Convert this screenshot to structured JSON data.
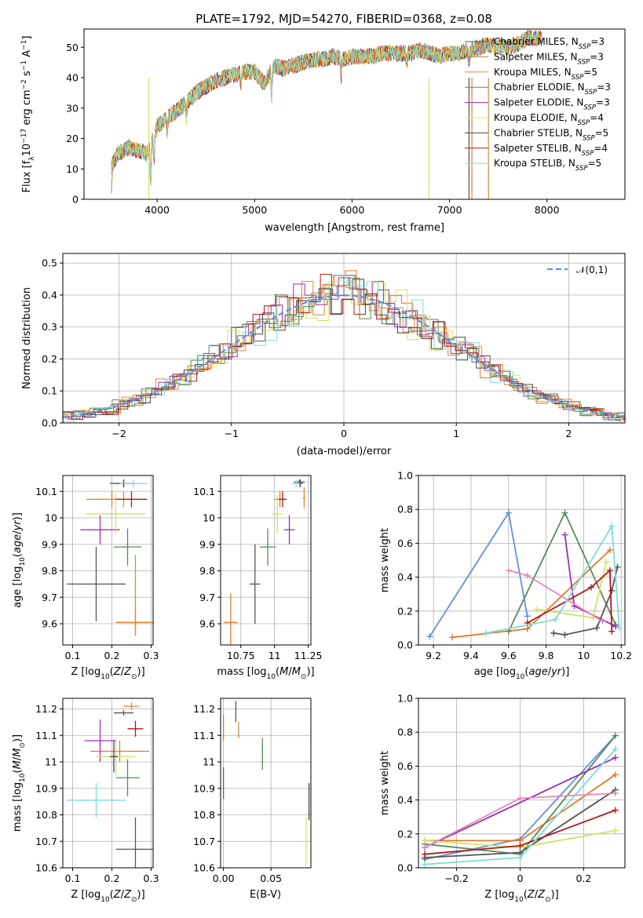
{
  "figure_title": "PLATE=1792, MJD=54270, FIBERID=0368, z=0.08",
  "model_colors": [
    "#555555",
    "#e07b2a",
    "#d98b3a",
    "#5a8a5a",
    "#9b30b0",
    "#d8e060",
    "#444444",
    "#b01818",
    "#80dada"
  ],
  "legend_entries": [
    "Chabrier MILES, N_SSP=3",
    "Salpeter MILES, N_SSP=3",
    "Kroupa MILES, N_SSP=5",
    "Chabrier ELODIE, N_SSP=3",
    "Salpeter ELODIE, N_SSP=3",
    "Kroupa ELODIE, N_SSP=4",
    "Chabrier STELIB, N_SSP=5",
    "Salpeter STELIB, N_SSP=4",
    "Kroupa STELIB, N_SSP=5"
  ],
  "chart_data": [
    {
      "id": "spectrum",
      "type": "line",
      "title": "PLATE=1792, MJD=54270, FIBERID=0368, z=0.08",
      "xlabel": "wavelength [Angstrom, rest frame]",
      "ylabel": "Flux [f_λ 10^-17 erg cm^-2 s^-1 A^-1]",
      "xlim": [
        3250,
        8800
      ],
      "ylim": [
        0,
        56
      ],
      "xticks": [
        4000,
        5000,
        6000,
        7000,
        8000
      ],
      "yticks": [
        0,
        10,
        20,
        30,
        40,
        50
      ],
      "x": [
        3530,
        3600,
        3700,
        3800,
        3900,
        4000,
        4100,
        4200,
        4300,
        4400,
        4500,
        4600,
        4700,
        4800,
        4900,
        5000,
        5100,
        5200,
        5300,
        5400,
        5500,
        5600,
        5700,
        5800,
        5900,
        6000,
        6100,
        6200,
        6300,
        6400,
        6500,
        6600,
        6700,
        6800,
        6900,
        7000,
        7100,
        7200,
        7300,
        7400,
        7500,
        7600,
        7700,
        7800,
        7900
      ],
      "flux": [
        11,
        15,
        17,
        16,
        15,
        24,
        27,
        29,
        32,
        35,
        37,
        39,
        40,
        41,
        42,
        42,
        38,
        44,
        43,
        44,
        45,
        46,
        46,
        47,
        46,
        47,
        47,
        47,
        48,
        48,
        48,
        48,
        49,
        48,
        47,
        48,
        48,
        49,
        50,
        51,
        50,
        50,
        51,
        53,
        53
      ],
      "grid": false,
      "legend": "right"
    },
    {
      "id": "residuals",
      "type": "histogram",
      "xlabel": "(data-model)/error",
      "ylabel": "Normed distribution",
      "xlim": [
        -2.5,
        2.5
      ],
      "ylim": [
        0,
        0.53
      ],
      "xticks": [
        -2,
        -1,
        0,
        1,
        2
      ],
      "yticks": [
        0.0,
        0.1,
        0.2,
        0.3,
        0.4,
        0.5
      ],
      "reference_curve": "𝒩(0,1)",
      "legend": "top-right",
      "grid": true
    },
    {
      "id": "age-vs-Z",
      "type": "scatter",
      "xlabel": "Z [log10(Z/Z⊙)]",
      "ylabel": "age [log10(age/yr)]",
      "xlim": [
        0.075,
        0.305
      ],
      "ylim": [
        9.52,
        10.16
      ],
      "xticks": [
        0.1,
        0.2,
        0.3
      ],
      "yticks": [
        9.6,
        9.7,
        9.8,
        9.9,
        10.0,
        10.1
      ],
      "grid": true,
      "points": [
        {
          "x": 0.23,
          "y": 10.13,
          "xerr": 0.035,
          "yerr": 0.01
        },
        {
          "x": 0.2,
          "y": 10.07,
          "xerr": 0.065,
          "yerr": 0.03
        },
        {
          "x": 0.23,
          "y": 10.07,
          "xerr": 0.06,
          "yerr": 0.03
        },
        {
          "x": 0.24,
          "y": 9.89,
          "xerr": 0.035,
          "yerr": 0.07
        },
        {
          "x": 0.17,
          "y": 9.955,
          "xerr": 0.05,
          "yerr": 0.055
        },
        {
          "x": 0.21,
          "y": 10.015,
          "xerr": 0.075,
          "yerr": 0.075
        },
        {
          "x": 0.23,
          "y": 10.13,
          "xerr": 0.02,
          "yerr": 0.015
        },
        {
          "x": 0.25,
          "y": 10.07,
          "xerr": 0.04,
          "yerr": 0.03
        },
        {
          "x": 0.255,
          "y": 10.13,
          "xerr": 0.035,
          "yerr": 0.015
        },
        {
          "x": 0.16,
          "y": 9.75,
          "xerr": 0.075,
          "yerr": 0.14
        },
        {
          "x": 0.26,
          "y": 9.605,
          "xerr": 0.05,
          "yerr": 0.05
        },
        {
          "x": 0.26,
          "y": 9.71,
          "xerr": 0.0,
          "yerr": 0.15
        }
      ]
    },
    {
      "id": "age-vs-mass",
      "type": "scatter",
      "xlabel": "mass [log10(M/M⊙)]",
      "ylabel": "",
      "xlim": [
        10.6,
        11.27
      ],
      "ylim": [
        9.52,
        10.16
      ],
      "xticks": [
        10.75,
        11.0,
        11.25
      ],
      "yticks": [
        9.6,
        9.7,
        9.8,
        9.9,
        10.0,
        10.1
      ],
      "grid": true,
      "points": [
        {
          "x": 11.185,
          "y": 10.135,
          "xerr": 0.04,
          "yerr": 0.01
        },
        {
          "x": 11.04,
          "y": 10.07,
          "xerr": 0.04,
          "yerr": 0.03
        },
        {
          "x": 11.22,
          "y": 10.075,
          "xerr": 0.01,
          "yerr": 0.04
        },
        {
          "x": 10.95,
          "y": 9.89,
          "xerr": 0.06,
          "yerr": 0.07
        },
        {
          "x": 11.11,
          "y": 9.955,
          "xerr": 0.04,
          "yerr": 0.055
        },
        {
          "x": 11.02,
          "y": 10.015,
          "xerr": 0.04,
          "yerr": 0.075
        },
        {
          "x": 11.19,
          "y": 10.13,
          "xerr": 0.02,
          "yerr": 0.015
        },
        {
          "x": 11.06,
          "y": 10.07,
          "xerr": 0.03,
          "yerr": 0.03
        },
        {
          "x": 11.16,
          "y": 10.13,
          "xerr": 0.03,
          "yerr": 0.015
        },
        {
          "x": 10.855,
          "y": 9.75,
          "xerr": 0.04,
          "yerr": 0.15
        },
        {
          "x": 10.675,
          "y": 9.605,
          "xerr": 0.05,
          "yerr": 0.11
        }
      ]
    },
    {
      "id": "massweight-vs-age",
      "type": "line",
      "xlabel": "age [log10(age/yr)]",
      "ylabel": "mass weight",
      "xlim": [
        9.12,
        10.22
      ],
      "ylim": [
        0,
        1.0
      ],
      "xticks": [
        9.2,
        9.4,
        9.6,
        9.8,
        10.0,
        10.2
      ],
      "yticks": [
        0.0,
        0.2,
        0.4,
        0.6,
        0.8,
        1.0
      ],
      "grid": true,
      "series": [
        {
          "x": [
            9.18,
            9.6,
            9.7
          ],
          "y": [
            0.05,
            0.78,
            0.17
          ]
        },
        {
          "x": [
            9.3,
            9.7,
            10.14
          ],
          "y": [
            0.045,
            0.095,
            0.56
          ]
        },
        {
          "x": [
            9.6,
            9.9,
            10.17
          ],
          "y": [
            0.08,
            0.78,
            0.12
          ]
        },
        {
          "x": [
            9.9,
            9.95,
            10.17
          ],
          "y": [
            0.65,
            0.23,
            0.11
          ]
        },
        {
          "x": [
            9.75,
            10.05,
            10.12
          ],
          "y": [
            0.21,
            0.16,
            0.49
          ]
        },
        {
          "x": [
            9.84,
            9.9,
            10.07,
            10.15,
            10.18
          ],
          "y": [
            0.07,
            0.06,
            0.1,
            0.32,
            0.46
          ]
        },
        {
          "x": [
            9.7,
            10.04,
            10.14,
            10.15
          ],
          "y": [
            0.13,
            0.34,
            0.44,
            0.08
          ]
        },
        {
          "x": [
            9.48,
            9.85,
            10.15,
            10.19
          ],
          "y": [
            0.07,
            0.15,
            0.7,
            0.1
          ]
        },
        {
          "x": [
            9.6,
            9.7,
            10.1
          ],
          "y": [
            0.44,
            0.41,
            0.14
          ]
        }
      ]
    },
    {
      "id": "mass-vs-Z",
      "type": "scatter",
      "xlabel": "Z [log10(Z/Z⊙)]",
      "ylabel": "mass [log10(M/M⊙)]",
      "xlim": [
        0.075,
        0.305
      ],
      "ylim": [
        10.6,
        11.24
      ],
      "xticks": [
        0.1,
        0.2,
        0.3
      ],
      "yticks": [
        10.6,
        10.7,
        10.8,
        10.9,
        11.0,
        11.1,
        11.2
      ],
      "grid": true,
      "points": [
        {
          "x": 0.23,
          "y": 11.185,
          "xerr": 0.025,
          "yerr": 0.01
        },
        {
          "x": 0.22,
          "y": 11.04,
          "xerr": 0.075,
          "yerr": 0.04
        },
        {
          "x": 0.25,
          "y": 11.21,
          "xerr": 0.02,
          "yerr": 0.015
        },
        {
          "x": 0.24,
          "y": 10.94,
          "xerr": 0.03,
          "yerr": 0.07
        },
        {
          "x": 0.17,
          "y": 11.08,
          "xerr": 0.04,
          "yerr": 0.08
        },
        {
          "x": 0.21,
          "y": 11.02,
          "xerr": 0.05,
          "yerr": 0.07
        },
        {
          "x": 0.205,
          "y": 11.02,
          "xerr": 0.01,
          "yerr": 0.06
        },
        {
          "x": 0.26,
          "y": 11.125,
          "xerr": 0.02,
          "yerr": 0.03
        },
        {
          "x": 0.16,
          "y": 10.855,
          "xerr": 0.075,
          "yerr": 0.065
        },
        {
          "x": 0.26,
          "y": 10.67,
          "xerr": 0.05,
          "yerr": 0.12
        }
      ]
    },
    {
      "id": "mass-vs-EBV",
      "type": "scatter",
      "xlabel": "E(B-V)",
      "ylabel": "",
      "xlim": [
        -0.003,
        0.092
      ],
      "ylim": [
        10.6,
        11.24
      ],
      "xticks": [
        0.0,
        0.05
      ],
      "yticks": [
        10.6,
        10.7,
        10.8,
        10.9,
        11.0,
        11.1,
        11.2
      ],
      "grid": true,
      "points": [
        {
          "x": 0.013,
          "y": 11.19,
          "yerr": 0.04
        },
        {
          "x": 0.0,
          "y": 11.13,
          "yerr": 0.05
        },
        {
          "x": 0.016,
          "y": 11.12,
          "yerr": 0.03
        },
        {
          "x": 0.041,
          "y": 11.03,
          "yerr": 0.06
        },
        {
          "x": 0.0,
          "y": 10.92,
          "yerr": 0.06
        },
        {
          "x": 0.087,
          "y": 10.7,
          "yerr": 0.09
        },
        {
          "x": 0.09,
          "y": 10.85,
          "yerr": 0.07
        }
      ]
    },
    {
      "id": "massweight-vs-Z",
      "type": "line",
      "xlabel": "Z [log10(Z/Z⊙)]",
      "ylabel": "mass weight",
      "xlim": [
        -0.32,
        0.33
      ],
      "ylim": [
        0,
        1.0
      ],
      "xticks": [
        -0.2,
        0.0,
        0.2
      ],
      "yticks": [
        0.0,
        0.2,
        0.4,
        0.6,
        0.8,
        1.0
      ],
      "grid": true,
      "series": [
        {
          "x": [
            -0.3,
            0.0,
            0.3
          ],
          "y": [
            0.05,
            0.17,
            0.78
          ]
        },
        {
          "x": [
            -0.3,
            0.0,
            0.3
          ],
          "y": [
            0.16,
            0.16,
            0.55
          ]
        },
        {
          "x": [
            -0.3,
            0.0,
            0.3
          ],
          "y": [
            0.14,
            0.08,
            0.78
          ]
        },
        {
          "x": [
            -0.3,
            0.3
          ],
          "y": [
            0.12,
            0.65
          ]
        },
        {
          "x": [
            -0.3,
            0.0,
            0.3
          ],
          "y": [
            0.16,
            0.12,
            0.22
          ]
        },
        {
          "x": [
            -0.3,
            0.0,
            0.3
          ],
          "y": [
            0.06,
            0.09,
            0.46
          ]
        },
        {
          "x": [
            -0.3,
            0.0,
            0.3
          ],
          "y": [
            0.08,
            0.13,
            0.34
          ]
        },
        {
          "x": [
            -0.3,
            0.0,
            0.3
          ],
          "y": [
            0.02,
            0.06,
            0.7
          ]
        },
        {
          "x": [
            -0.3,
            0.0,
            0.3
          ],
          "y": [
            0.12,
            0.41,
            0.44
          ]
        }
      ]
    }
  ]
}
